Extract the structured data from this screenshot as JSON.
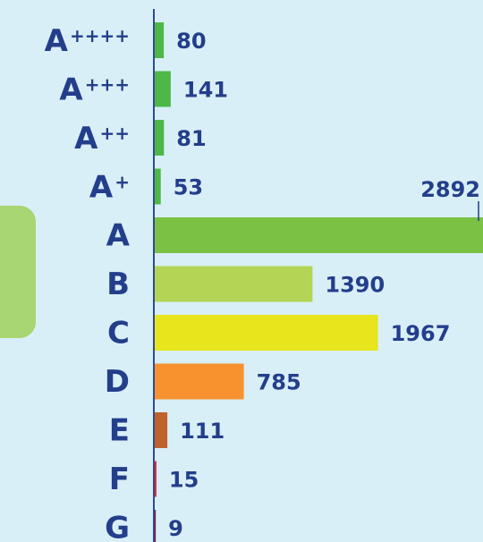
{
  "chart_data": {
    "type": "bar",
    "orientation": "horizontal",
    "categories": [
      "A++++",
      "A+++",
      "A++",
      "A+",
      "A",
      "B",
      "C",
      "D",
      "E",
      "F",
      "G"
    ],
    "values": [
      80,
      141,
      81,
      53,
      2892,
      1390,
      1967,
      785,
      111,
      15,
      9
    ],
    "colors": [
      "#4db848",
      "#4db848",
      "#4db848",
      "#4db848",
      "#7bc143",
      "#b3d455",
      "#e8e51c",
      "#f7922e",
      "#c0622b",
      "#e8212d",
      "#8b1a3a"
    ],
    "xlim": [
      0,
      2892
    ]
  }
}
